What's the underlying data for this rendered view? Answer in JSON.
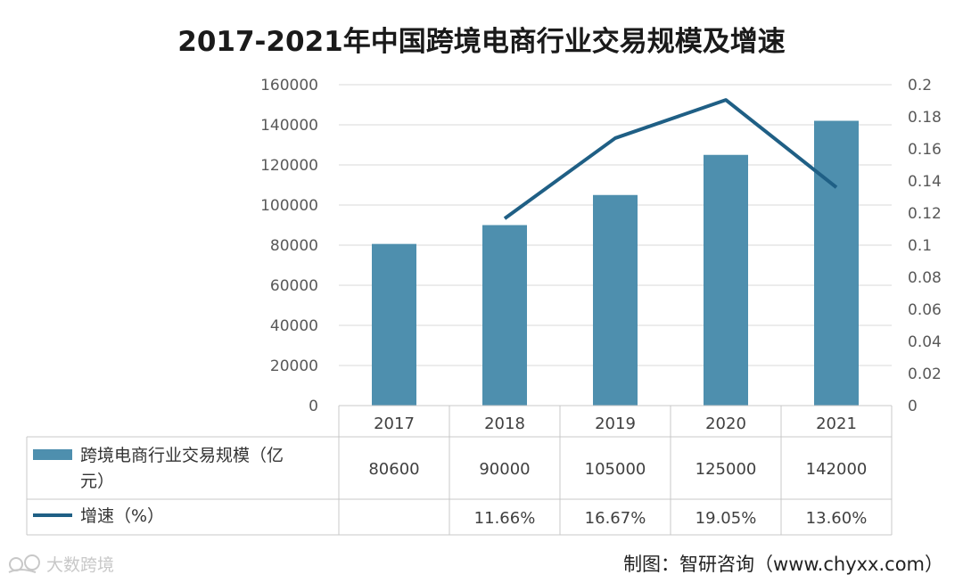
{
  "chart_data": {
    "type": "bar",
    "title": "2017-2021年中国跨境电商行业交易规模及增速",
    "categories": [
      "2017",
      "2018",
      "2019",
      "2020",
      "2021"
    ],
    "y_left": {
      "ylim": [
        0,
        160000
      ],
      "ticks": [
        "0",
        "20000",
        "40000",
        "60000",
        "80000",
        "100000",
        "120000",
        "140000",
        "160000"
      ]
    },
    "y_right": {
      "ylim": [
        0,
        0.2
      ],
      "ticks": [
        "0",
        "0.02",
        "0.04",
        "0.06",
        "0.08",
        "0.1",
        "0.12",
        "0.14",
        "0.16",
        "0.18",
        "0.2"
      ]
    },
    "series": [
      {
        "name": "跨境电商行业交易规模（亿元）",
        "type": "bar",
        "color": "#4e8fae",
        "values": [
          80600,
          90000,
          105000,
          125000,
          142000
        ],
        "labels": [
          "80600",
          "90000",
          "105000",
          "125000",
          "142000"
        ]
      },
      {
        "name": "增速（%）",
        "type": "line",
        "color": "#1f5f85",
        "values": [
          null,
          0.1166,
          0.1667,
          0.1905,
          0.136
        ],
        "labels": [
          "",
          "11.66%",
          "16.67%",
          "19.05%",
          "13.60%"
        ]
      }
    ],
    "grid": true,
    "legend": "data-table"
  },
  "source": "制图：智研咨询（www.chyxx.com）",
  "watermark": "大数跨境"
}
